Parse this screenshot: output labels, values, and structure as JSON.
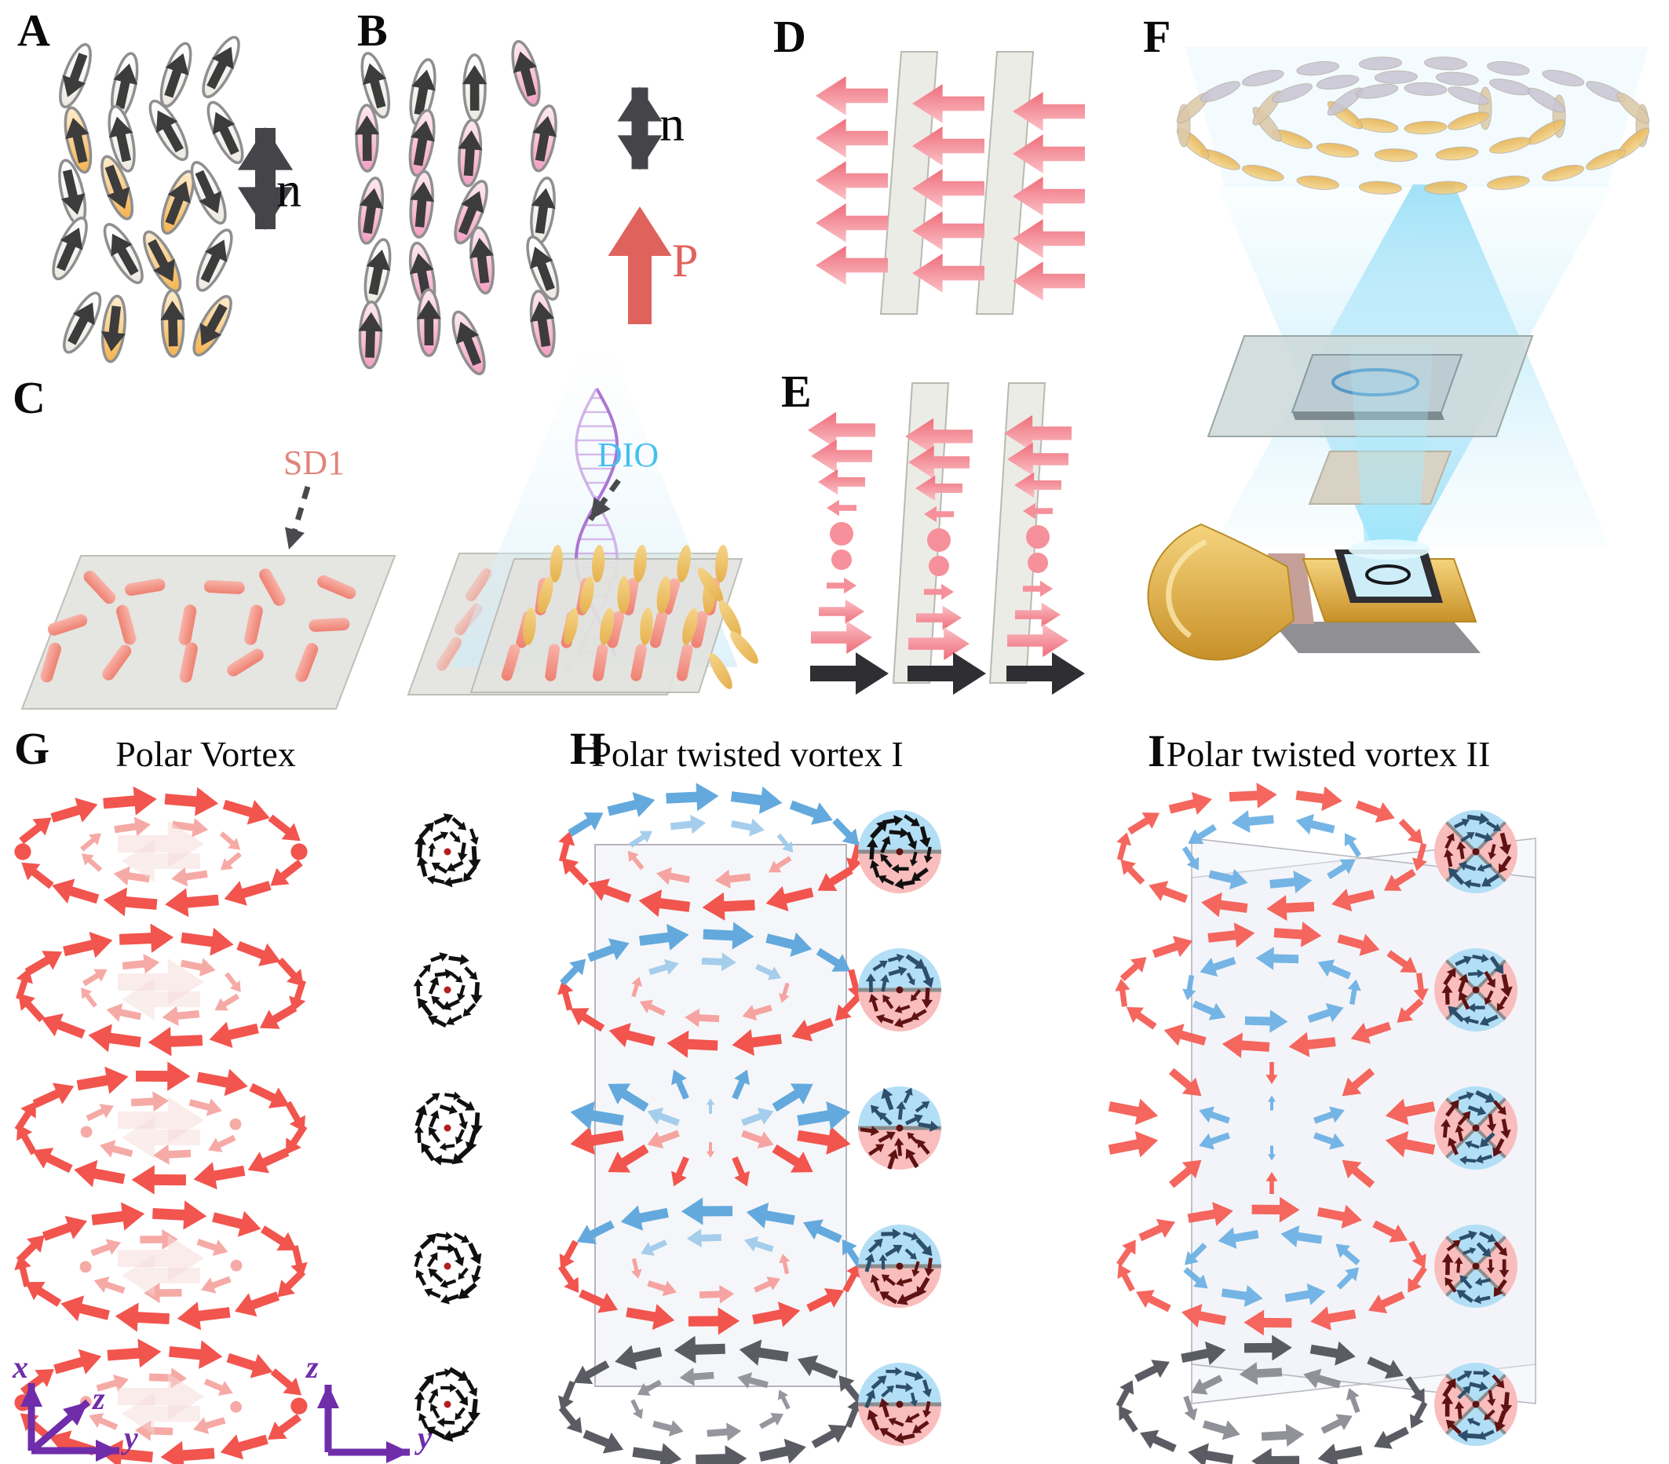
{
  "panels": {
    "A": {
      "letter": "A",
      "director_label": "n",
      "description": "nematic molecules, random up-down polarity"
    },
    "B": {
      "letter": "B",
      "director_label": "n",
      "polarization_label": "P",
      "description": "ferroelectric nematic, unidirectional polarity"
    },
    "C": {
      "letter": "C",
      "sd1_label": "SD1",
      "dio_label": "DIO",
      "description": "photoalignment: SD1 layer, polarized light exposure, DIO molecules aligned"
    },
    "D": {
      "letter": "D",
      "description": "uniform polarization between two plates",
      "arrow_rows": 5,
      "arrow_cols": 3
    },
    "E": {
      "letter": "E",
      "description": "twisted polarization between two plates",
      "arrow_rows": 10,
      "arrow_cols": 3
    },
    "F": {
      "letter": "F",
      "description": "device stack with light cone and molecular vortex rings"
    },
    "G": {
      "letter": "G",
      "title": "Polar Vortex",
      "layers": 5,
      "axes": {
        "x": "x",
        "y": "y",
        "z": "z"
      },
      "inset_axes": {
        "z": "z",
        "y": "y"
      }
    },
    "H": {
      "letter": "H",
      "title": "Polar twisted vortex I",
      "layers": 5
    },
    "I": {
      "letter": "I",
      "title": "Polar twisted vortex II",
      "layers": 5
    }
  },
  "figure": {
    "colors": {
      "red": "#f2544e",
      "redLight": "#f59b97",
      "redGhost": "#f5d9d7",
      "pinkArrow": "#f6909a",
      "pinkArrowDark": "#ee6e7a",
      "blue": "#63a9dd",
      "blueLight": "#9cc9ea",
      "grayArrow": "#5b5b63",
      "grayArrowLight": "#8b8b94",
      "black": "#2f2f33",
      "insetBlue": "#b3dff6",
      "insetPink": "#f9bdbd",
      "insetDivider": "#8c8c8c",
      "insetArrowBlack": "#101010",
      "insetArrowNavy": "#2d4f6b",
      "insetArrowMaroon": "#5f1212",
      "insetDot": "#b41f1f",
      "purpleAxis": "#6f2daa",
      "moleculeOrange": "#f6b44f",
      "moleculeOrangeLight": "#fdeccd",
      "moleculePink": "#f49fc2",
      "moleculePinkLight": "#fdeaf2",
      "moleculeOutline": "#8f8f8f",
      "moleculeArrow": "#3c3c3c",
      "salmonRod": "#ee8172",
      "salmonRodLight": "#f8b3a8",
      "goldLeaf": "#e6b14e",
      "goldLeafLight": "#f4d488",
      "plateFill": "#e3e3df",
      "plateStroke": "#b9b9b2",
      "glassFill": "#ccd6d6",
      "glassStroke": "#9aa8a6",
      "coneBlue": "#8fd4ef",
      "helixPurple": "#a86fd0",
      "sd1Color": "#e2837b",
      "dioColor": "#45c0f0",
      "pColor": "#e0625c",
      "chipGold": "#d9b23f",
      "chipGoldDark": "#b88a24",
      "chipScreen": "#cdeef8",
      "chipBase": "#8f8f94"
    },
    "ring": {
      "outer_arrows": 14,
      "inner_arrows": 8,
      "inset_outer_arrows": 10,
      "inset_inner_arrows": 6
    }
  }
}
